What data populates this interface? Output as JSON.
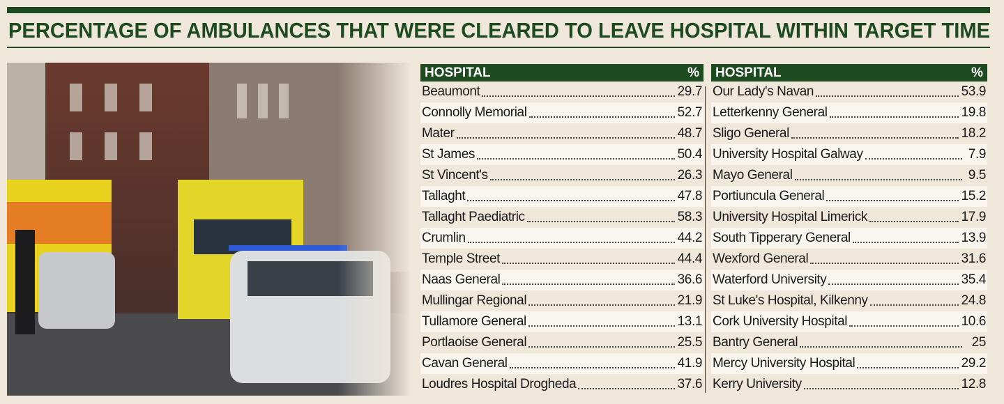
{
  "header": {
    "title": "PERCENTAGE OF AMBULANCES THAT WERE CLEARED TO LEAVE HOSPITAL WITHIN TARGET TIME"
  },
  "tables": [
    {
      "headers": [
        "HOSPITAL",
        "%"
      ],
      "rows": [
        [
          "Beaumont",
          29.7
        ],
        [
          "Connolly Memorial",
          52.7
        ],
        [
          "Mater",
          48.7
        ],
        [
          "St James",
          50.4
        ],
        [
          "St Vincent's",
          26.3
        ],
        [
          "Tallaght",
          47.8
        ],
        [
          "Tallaght Paediatric",
          58.3
        ],
        [
          "Crumlin",
          44.2
        ],
        [
          "Temple Street",
          44.4
        ],
        [
          "Naas General",
          36.6
        ],
        [
          "Mullingar Regional",
          21.9
        ],
        [
          "Tullamore General",
          13.1
        ],
        [
          "Portlaoise General",
          25.5
        ],
        [
          "Cavan General",
          41.9
        ],
        [
          "Loudres Hospital Drogheda",
          37.6
        ]
      ]
    },
    {
      "headers": [
        "HOSPITAL",
        "%"
      ],
      "rows": [
        [
          "Our Lady's Navan",
          53.9
        ],
        [
          "Letterkenny General",
          19.8
        ],
        [
          "Sligo General",
          18.2
        ],
        [
          "University Hospital Galway",
          7.9
        ],
        [
          "Mayo General",
          9.5
        ],
        [
          "Portiuncula General",
          15.2
        ],
        [
          "University Hospital Limerick",
          17.9
        ],
        [
          "South Tipperary General",
          13.9
        ],
        [
          "Wexford General",
          31.6
        ],
        [
          "Waterford University",
          35.4
        ],
        [
          "St Luke's Hospital, Kilkenny",
          24.8
        ],
        [
          "Cork University Hospital",
          10.6
        ],
        [
          "Bantry General",
          25
        ],
        [
          "Mercy University Hospital",
          29.2
        ],
        [
          "Kerry University",
          12.8
        ]
      ]
    }
  ]
}
